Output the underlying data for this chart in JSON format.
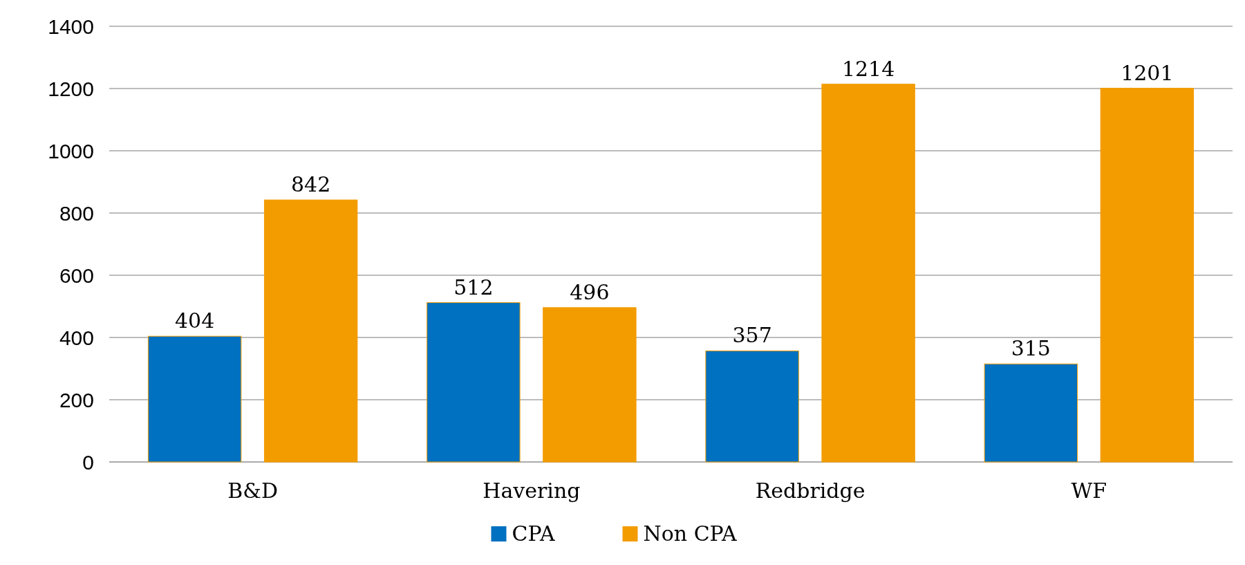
{
  "chart_data": {
    "type": "bar",
    "categories": [
      "B&D",
      "Havering",
      "Redbridge",
      "WF"
    ],
    "series": [
      {
        "name": "CPA",
        "color": "#0070c0",
        "values": [
          404,
          512,
          357,
          315
        ]
      },
      {
        "name": "Non CPA",
        "color": "#f39c00",
        "values": [
          842,
          496,
          1214,
          1201
        ]
      }
    ],
    "ylim": [
      0,
      1400
    ],
    "yticks": [
      0,
      200,
      400,
      600,
      800,
      1000,
      1200,
      1400
    ],
    "grid": "y",
    "legend": "bottom",
    "data_labels": true
  }
}
